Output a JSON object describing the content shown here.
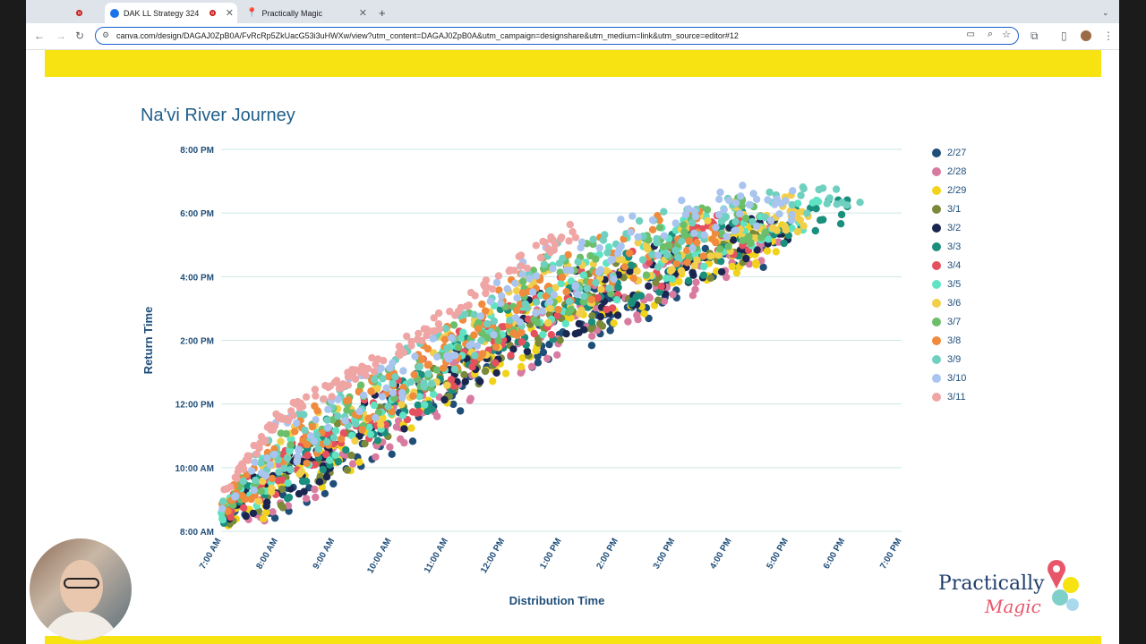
{
  "browser": {
    "tabs": [
      {
        "title": ""
      },
      {
        "title": "DAK LL Strategy 324"
      },
      {
        "title": "Practically Magic"
      }
    ],
    "new_tab": "+",
    "url": "canva.com/design/DAGAJ0ZpB0A/FvRcRp5ZkUacG53i3uHWXw/view?utm_content=DAGAJ0ZpB0A&utm_campaign=designshare&utm_medium=link&utm_source=editor#12"
  },
  "slide": {
    "logo_line1": "Practically",
    "logo_line2": "Magic"
  },
  "chart_data": {
    "type": "scatter",
    "title": "Na'vi River Journey",
    "xlabel": "Distribution Time",
    "ylabel": "Return Time",
    "x_ticks": [
      "7:00 AM",
      "8:00 AM",
      "9:00 AM",
      "10:00 AM",
      "11:00 AM",
      "12:00 PM",
      "1:00 PM",
      "2:00 PM",
      "3:00 PM",
      "4:00 PM",
      "5:00 PM",
      "6:00 PM",
      "7:00 PM"
    ],
    "y_ticks": [
      "8:00 AM",
      "10:00 AM",
      "12:00 PM",
      "2:00 PM",
      "4:00 PM",
      "6:00 PM",
      "8:00 PM"
    ],
    "xlim_hours": [
      7,
      19
    ],
    "ylim_hours": [
      8,
      20
    ],
    "legend_position": "right",
    "grid": "horizontal",
    "series": [
      {
        "name": "2/27",
        "color": "#1f4e79",
        "x_end": 16.8
      },
      {
        "name": "2/28",
        "color": "#d97aa0",
        "x_end": 16.9
      },
      {
        "name": "2/29",
        "color": "#f2d31b",
        "x_end": 17.2
      },
      {
        "name": "3/1",
        "color": "#7a8a3a",
        "x_end": 16.8
      },
      {
        "name": "3/2",
        "color": "#1a2650",
        "x_end": 17.0
      },
      {
        "name": "3/3",
        "color": "#1a8f7e",
        "x_end": 18.1
      },
      {
        "name": "3/4",
        "color": "#e6505e",
        "x_end": 16.4
      },
      {
        "name": "3/5",
        "color": "#5fe3c3",
        "x_end": 17.7
      },
      {
        "name": "3/6",
        "color": "#f2cf4a",
        "x_end": 17.4
      },
      {
        "name": "3/7",
        "color": "#6cbf6a",
        "x_end": 16.6
      },
      {
        "name": "3/8",
        "color": "#f08a3c",
        "x_end": 15.9
      },
      {
        "name": "3/9",
        "color": "#6fd0c0",
        "x_end": 18.3
      },
      {
        "name": "3/10",
        "color": "#a9c4ef",
        "x_end": 17.1
      },
      {
        "name": "3/11",
        "color": "#f0a5a5",
        "x_end": 13.3
      }
    ]
  }
}
